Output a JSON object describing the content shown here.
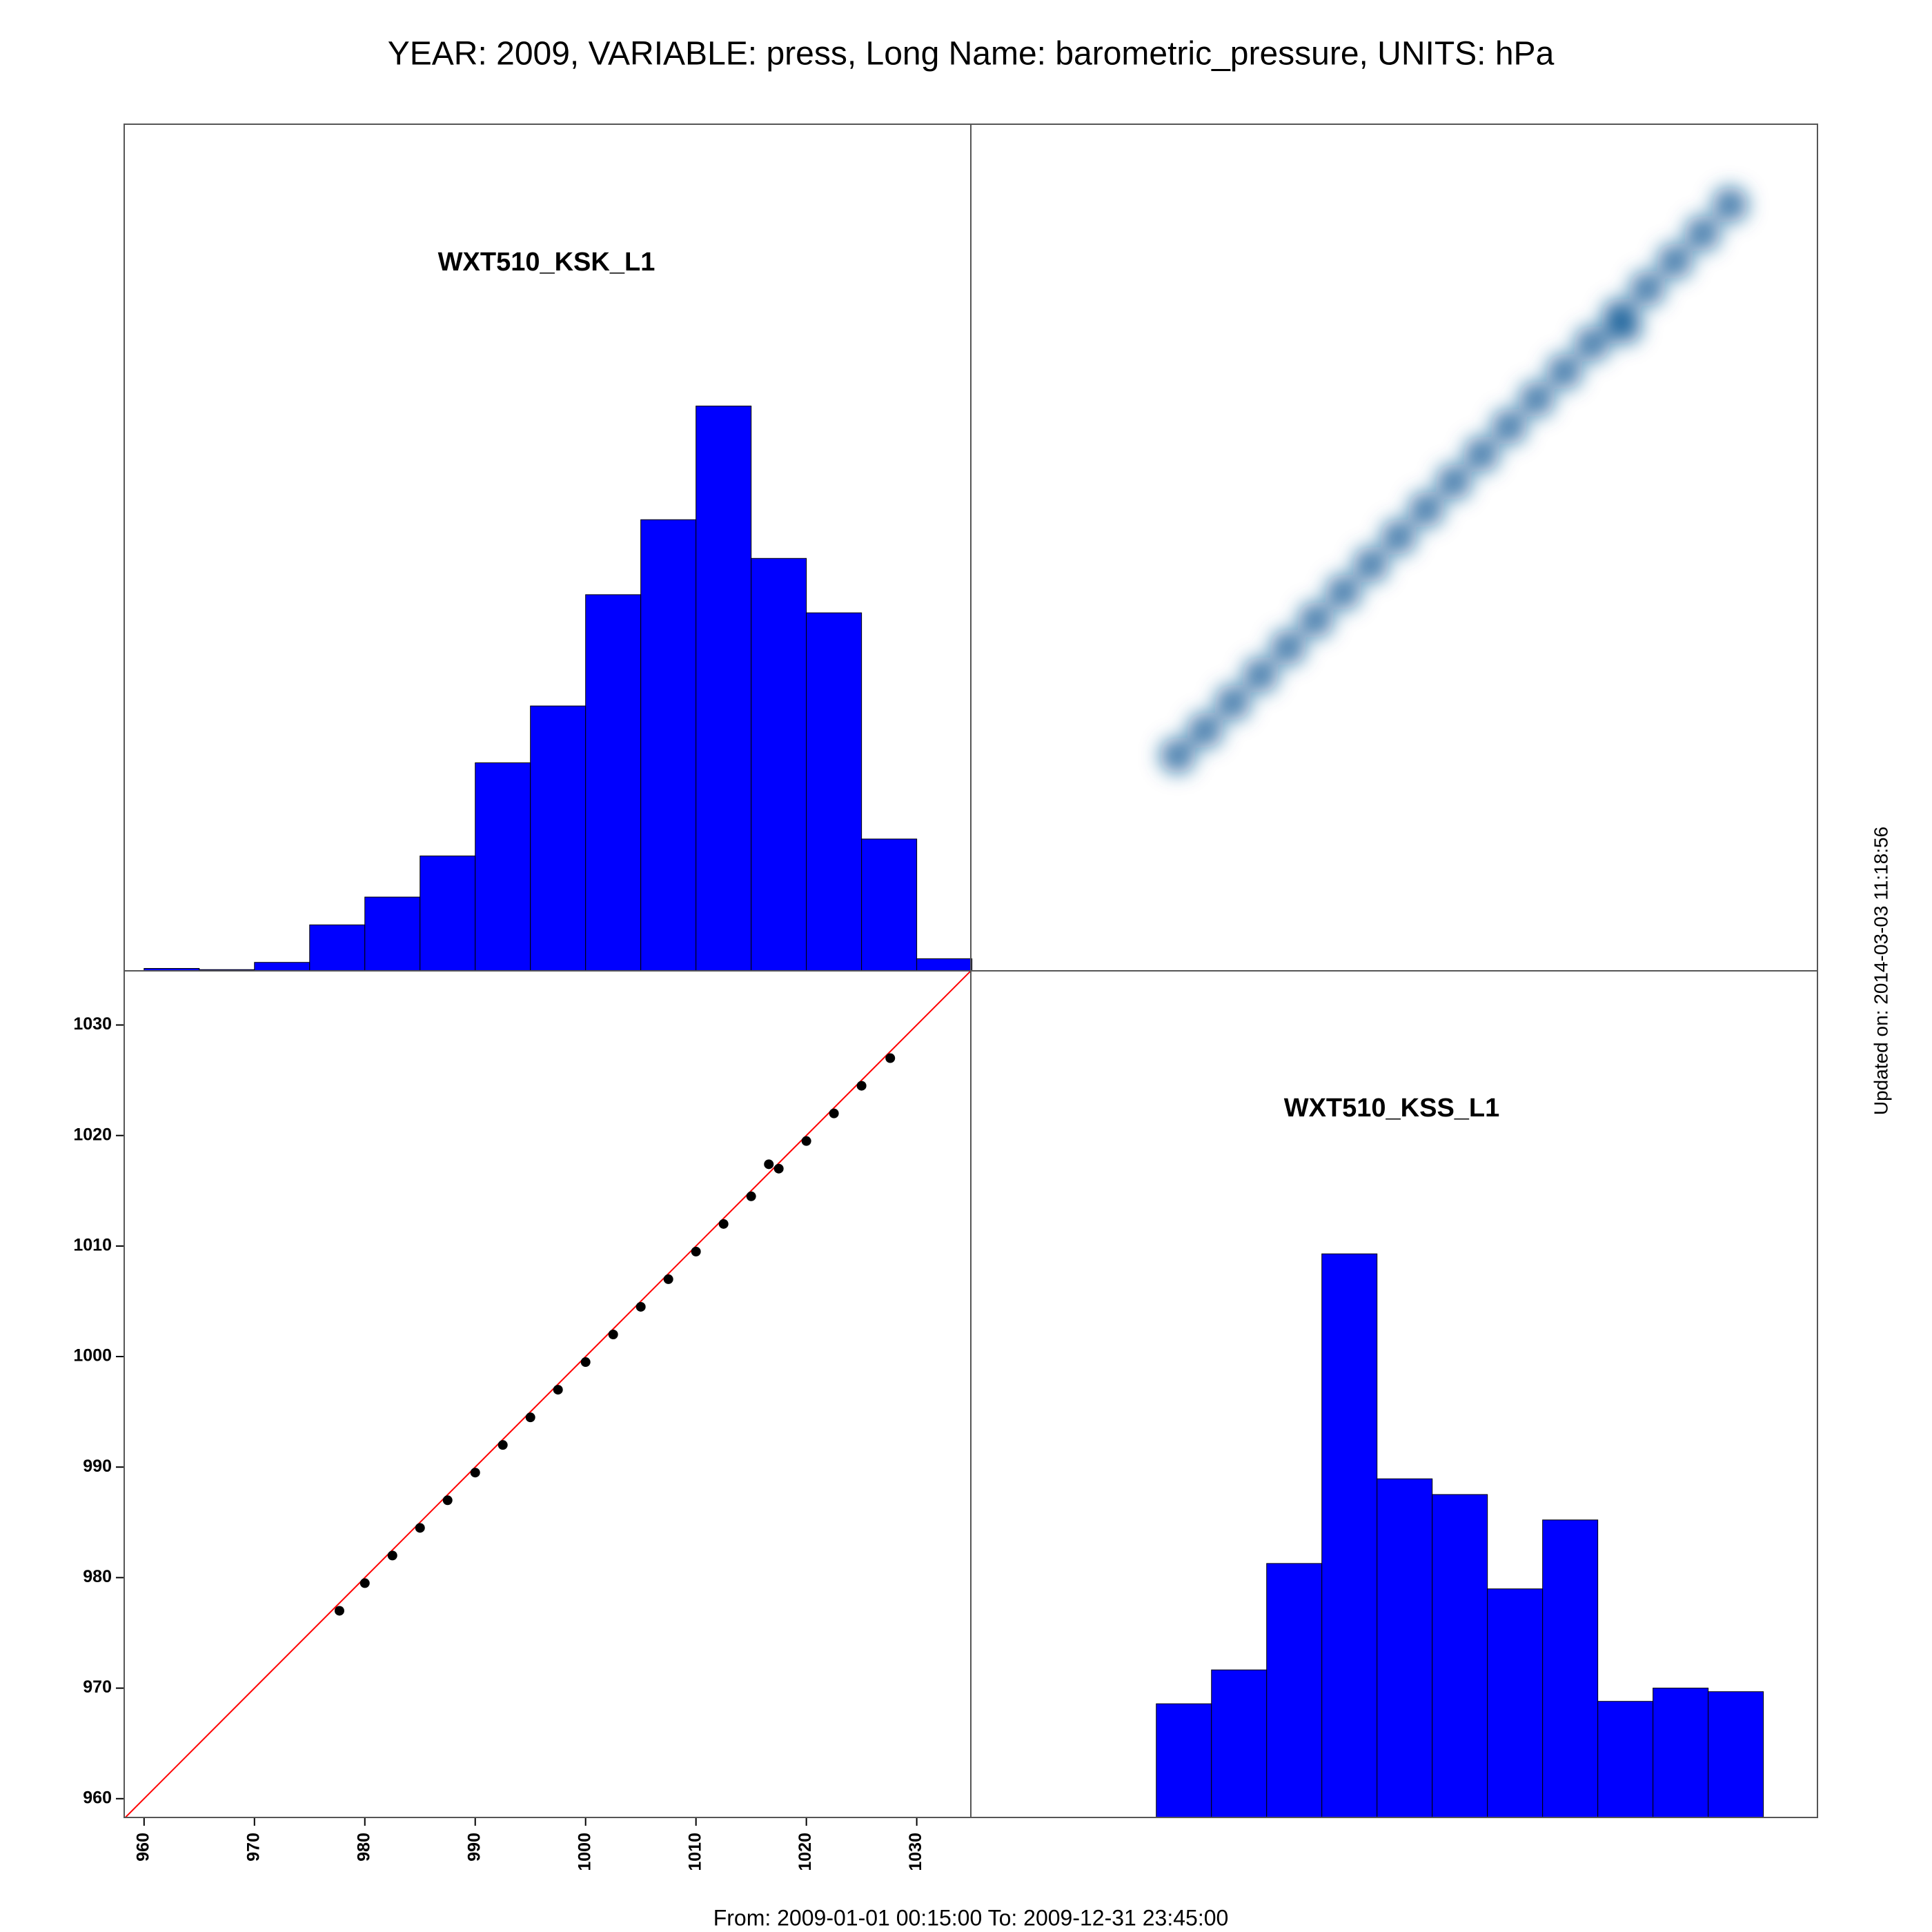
{
  "title": "YEAR: 2009, VARIABLE: press, Long Name: barometric_pressure, UNITS: hPa",
  "footer": "From: 2009-01-01 00:15:00 To: 2009-12-31 23:45:00",
  "updated": "Updated on: 2014-03-03 11:18:56",
  "chart_data": [
    {
      "type": "histogram",
      "title": "WXT510_KSK_L1",
      "bins": [
        960,
        965,
        970,
        975,
        980,
        985,
        990,
        995,
        1000,
        1005,
        1010,
        1015,
        1020,
        1025,
        1030,
        1035
      ],
      "values": [
        2,
        1,
        7,
        38,
        61,
        95,
        172,
        219,
        311,
        373,
        467,
        341,
        296,
        109,
        10
      ],
      "color": "#0000ff",
      "xlim": [
        958.2,
        1034.9
      ],
      "ylim": [
        0,
        700
      ]
    },
    {
      "type": "scatter",
      "x": [
        977.7,
        980,
        982.5,
        985,
        987.5,
        990,
        992.5,
        995,
        997.5,
        1000,
        1002.5,
        1005,
        1007.5,
        1010,
        1012.5,
        1015,
        1017.5,
        1020,
        1022.5,
        1025,
        1027.6,
        1016.6
      ],
      "y": [
        977.0,
        979.5,
        982.0,
        984.5,
        987.0,
        989.5,
        992.0,
        994.5,
        997.0,
        999.5,
        1002.0,
        1004.5,
        1007.0,
        1009.5,
        1012.0,
        1014.5,
        1017.0,
        1019.5,
        1022.0,
        1024.5,
        1027.0,
        1017.4
      ],
      "color": "#000000",
      "line_color": "#ff0000",
      "density_color": "#0b5a96",
      "xlim": [
        958.2,
        1034.9
      ],
      "ylim": [
        958.3,
        1034.9
      ],
      "xticks": [
        960,
        970,
        980,
        990,
        1000,
        1010,
        1020,
        1030
      ],
      "yticks": [
        960,
        970,
        980,
        990,
        1000,
        1010,
        1020,
        1030
      ]
    },
    {
      "type": "histogram",
      "title": "WXT510_KSS_L1",
      "bins": [
        975,
        980,
        985,
        990,
        995,
        1000,
        1005,
        1010,
        1015,
        1020,
        1025,
        1030
      ],
      "values": [
        94,
        122,
        210,
        466,
        280,
        267,
        189,
        246,
        96,
        107,
        104
      ],
      "color": "#0000ff",
      "xlim": [
        958.2,
        1034.9
      ],
      "ylim": [
        0,
        700
      ]
    }
  ]
}
